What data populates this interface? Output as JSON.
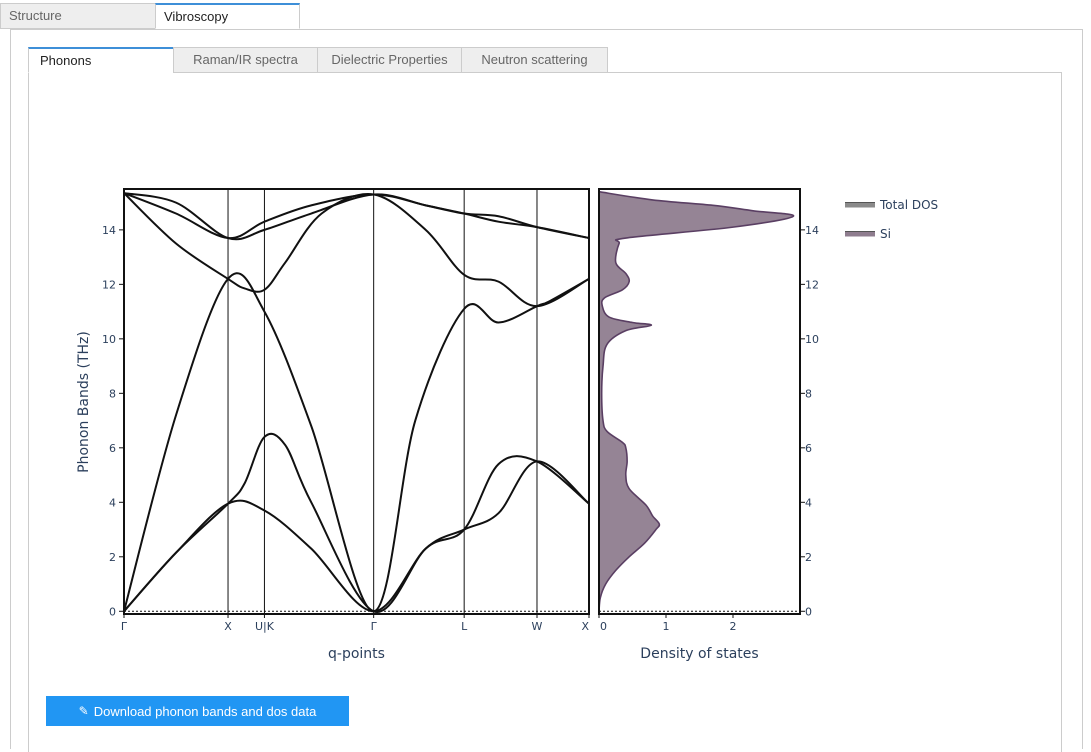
{
  "tabs": [
    {
      "label": "Structure",
      "active": false
    },
    {
      "label": "Vibroscopy",
      "active": true
    }
  ],
  "subtabs": [
    {
      "label": "Phonons",
      "active": true
    },
    {
      "label": "Raman/IR spectra",
      "active": false
    },
    {
      "label": "Dielectric Properties",
      "active": false
    },
    {
      "label": "Neutron scattering",
      "active": false
    }
  ],
  "download_label": "Download phonon bands and dos data",
  "chart_data": [
    {
      "type": "line",
      "xlabel": "q-points",
      "ylabel": "Phonon Bands (THz)",
      "ylim": [
        -0.1,
        15.5
      ],
      "yticks": [
        0,
        2,
        4,
        6,
        8,
        10,
        12,
        14
      ],
      "labels": [
        "Γ",
        "X",
        "U|K",
        "Γ",
        "L",
        "W",
        "X"
      ],
      "label_positions": [
        0,
        1.0,
        1.35,
        2.4,
        3.27,
        3.97,
        4.47
      ],
      "line_color": "#111111",
      "zero_line": "dotted",
      "series": [
        {
          "x": [
            0,
            0.5,
            1.0,
            1.35,
            1.8,
            2.4,
            2.9,
            3.27,
            3.6,
            3.97,
            4.47
          ],
          "y": [
            0,
            2.15,
            3.95,
            3.7,
            2.3,
            0,
            2.3,
            3.0,
            3.6,
            5.5,
            3.95
          ]
        },
        {
          "x": [
            0,
            0.5,
            1.0,
            1.16,
            1.35,
            1.55,
            1.8,
            2.4,
            2.9,
            3.27,
            3.6,
            3.97,
            4.47
          ],
          "y": [
            0,
            2.15,
            3.95,
            4.7,
            6.4,
            6.1,
            4.0,
            0,
            2.3,
            3.0,
            5.4,
            5.5,
            3.95
          ]
        },
        {
          "x": [
            0,
            0.5,
            1.0,
            1.35,
            1.8,
            2.4,
            2.8,
            3.27,
            3.6,
            3.97,
            4.1,
            4.47
          ],
          "y": [
            0,
            7.2,
            12.2,
            11.0,
            6.8,
            0,
            7.0,
            11.1,
            10.6,
            11.2,
            11.4,
            12.2
          ]
        },
        {
          "x": [
            0,
            0.5,
            1.0,
            1.16,
            1.35,
            1.55,
            1.9,
            2.4,
            2.9,
            3.27,
            3.6,
            3.97,
            4.47
          ],
          "y": [
            15.35,
            13.5,
            12.2,
            11.85,
            11.8,
            12.8,
            14.6,
            15.3,
            14.0,
            12.35,
            12.1,
            11.2,
            12.2
          ]
        },
        {
          "x": [
            0,
            0.5,
            1.0,
            1.35,
            1.8,
            2.4,
            2.9,
            3.27,
            3.6,
            3.97,
            4.47
          ],
          "y": [
            15.35,
            14.6,
            13.7,
            14.3,
            14.9,
            15.3,
            14.9,
            14.6,
            14.5,
            14.1,
            13.7
          ]
        },
        {
          "x": [
            0,
            0.5,
            1.0,
            1.35,
            1.8,
            2.4,
            2.9,
            3.27,
            3.6,
            3.97,
            4.47
          ],
          "y": [
            15.35,
            15.0,
            13.7,
            14.0,
            14.6,
            15.3,
            14.9,
            14.6,
            14.3,
            14.1,
            13.7
          ]
        }
      ]
    },
    {
      "type": "area",
      "xlabel": "Density of states",
      "xticks": [
        0,
        1,
        2
      ],
      "xlim": [
        0,
        3.0
      ],
      "ylim": [
        -0.1,
        15.5
      ],
      "legend_position": "right",
      "series": [
        {
          "name": "Total DOS",
          "color": "#8a8a8a",
          "freq": [],
          "dos": []
        },
        {
          "name": "Si",
          "color": "#8f7d8f",
          "freq": [
            0,
            0.5,
            1.0,
            1.5,
            2.0,
            2.5,
            3.0,
            3.2,
            3.5,
            3.9,
            4.5,
            5.0,
            5.5,
            6.0,
            6.2,
            6.6,
            7.0,
            8.0,
            9.0,
            9.8,
            10.3,
            10.5,
            10.6,
            10.8,
            11.2,
            11.5,
            11.8,
            12.1,
            12.4,
            12.8,
            13.5,
            13.7,
            14.1,
            14.5,
            14.7,
            14.9,
            15.1,
            15.4
          ],
          "dos": [
            0,
            0.02,
            0.1,
            0.25,
            0.45,
            0.68,
            0.85,
            0.9,
            0.8,
            0.7,
            0.45,
            0.4,
            0.42,
            0.4,
            0.35,
            0.12,
            0.06,
            0.04,
            0.06,
            0.12,
            0.4,
            0.78,
            0.5,
            0.15,
            0.05,
            0.08,
            0.35,
            0.45,
            0.4,
            0.25,
            0.3,
            0.4,
            2.0,
            2.9,
            2.3,
            1.7,
            0.8,
            0.0
          ]
        }
      ]
    }
  ]
}
